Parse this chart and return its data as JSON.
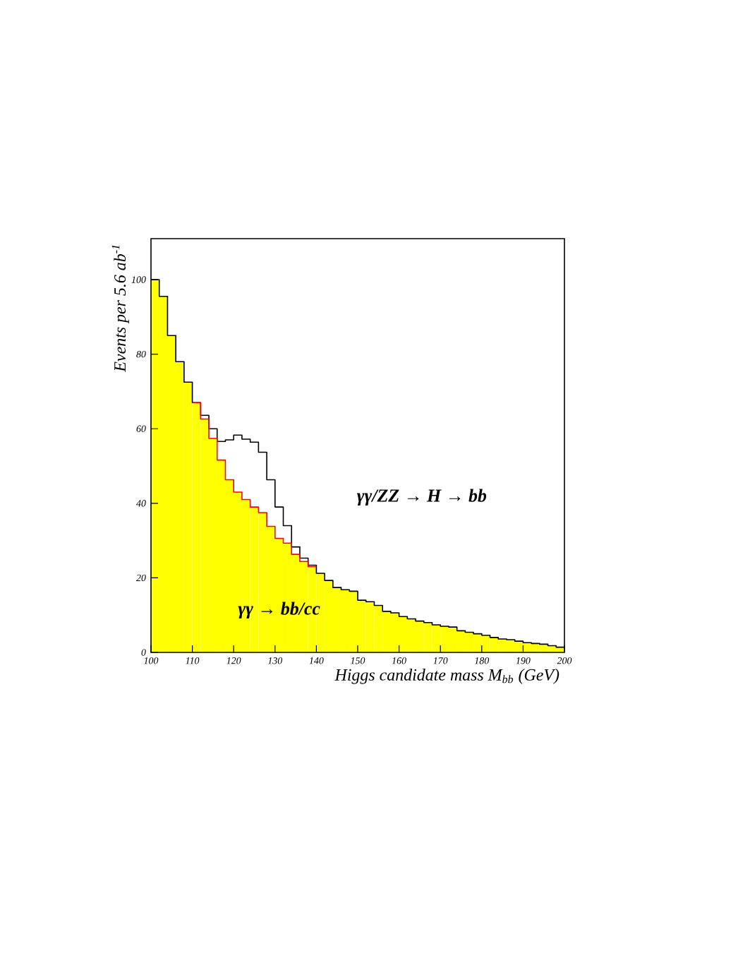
{
  "chart_data": {
    "type": "histogram",
    "xlabel": "Higgs candidate mass M$_{bb}$ (GeV)",
    "ylabel": "Events per 5.6 ab$^{-1}$",
    "bins": [
      100,
      102,
      104,
      106,
      108,
      110,
      112,
      114,
      116,
      118,
      120,
      122,
      124,
      126,
      128,
      130,
      132,
      134,
      136,
      138,
      140,
      142,
      144,
      146,
      148,
      150,
      152,
      154,
      156,
      158,
      160,
      162,
      164,
      166,
      168,
      170,
      172,
      174,
      176,
      178,
      180,
      182,
      184,
      186,
      188,
      190,
      192,
      194,
      196,
      198,
      200
    ],
    "series": [
      {
        "color": "#ffff00",
        "values": [
          100,
          95.5,
          85,
          78,
          72.5,
          67,
          62.6,
          57.4,
          51.6,
          46.3,
          43,
          41,
          39,
          37.5,
          33.8,
          30.6,
          29.3,
          26.3,
          24.4,
          23,
          21.2,
          19.3,
          17.4,
          16.8,
          16.4,
          14,
          13.6,
          12.6,
          11,
          10.6,
          9.6,
          9,
          8.4,
          8,
          7.4,
          7,
          6.8,
          5.8,
          5.4,
          5,
          4.6,
          4,
          3.6,
          3.4,
          3,
          2.6,
          2.4,
          2.2,
          1.8,
          1.4
        ]
      },
      {
        "type": "step",
        "color": "#ff0000",
        "x": [
          110,
          112,
          114,
          116,
          118,
          120,
          122,
          124,
          126,
          128,
          130,
          132,
          134,
          136,
          138,
          140
        ],
        "values": [
          67,
          62.6,
          57.4,
          51.6,
          46.3,
          43,
          41,
          39,
          37.5,
          33.8,
          30.6,
          29.3,
          26.3,
          24.4,
          23,
          23
        ]
      },
      {
        "type": "step",
        "color": "#000000",
        "x": [
          100,
          102,
          104,
          106,
          108,
          110,
          112,
          114,
          116,
          118,
          120,
          122,
          124,
          126,
          128,
          130,
          132,
          134,
          136,
          138,
          140,
          142,
          144,
          146,
          148,
          150,
          152,
          154,
          156,
          158,
          160,
          162,
          164,
          166,
          168,
          170,
          172,
          174,
          176,
          178,
          180,
          182,
          184,
          186,
          188,
          190,
          192,
          194,
          196,
          198,
          200
        ],
        "values": [
          100,
          95.5,
          85,
          78,
          72.5,
          67,
          63.6,
          60,
          56.6,
          57,
          58.3,
          57.2,
          56.4,
          53.7,
          46.3,
          39,
          34,
          28.3,
          25.3,
          23.4,
          21.2,
          19.3,
          17.4,
          16.8,
          16.4,
          14,
          13.6,
          12.6,
          11,
          10.6,
          9.6,
          9,
          8.4,
          8,
          7.4,
          7,
          6.8,
          5.8,
          5.4,
          5,
          4.6,
          4,
          3.6,
          3.4,
          3,
          2.6,
          2.4,
          2.2,
          1.8,
          1.4,
          1.4
        ]
      }
    ],
    "xlim": [
      100,
      200
    ],
    "ylim": [
      0,
      111
    ],
    "xticks": [
      100,
      110,
      120,
      130,
      140,
      150,
      160,
      170,
      180,
      190,
      200
    ],
    "yticks": [
      0,
      20,
      40,
      60,
      80,
      100
    ],
    "annotations": [
      "γγ/ZZ → H → bb",
      "γγ → bb/cc"
    ],
    "grid": false
  }
}
